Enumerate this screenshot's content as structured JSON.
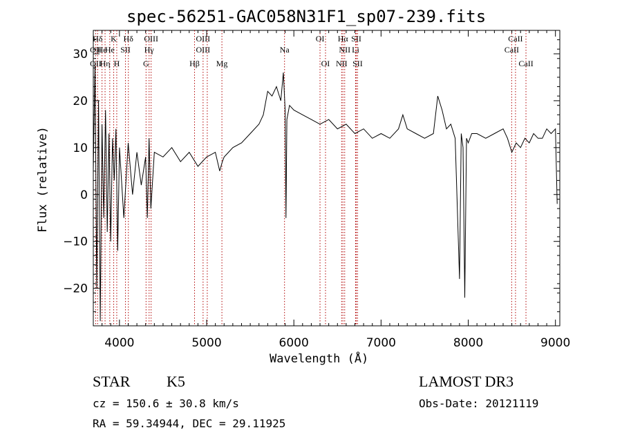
{
  "chart_data": {
    "type": "line",
    "title": "spec-56251-GAC058N31F1_sp07-239.fits",
    "xlabel": "Wavelength (Å)",
    "ylabel": "Flux (relative)",
    "xlim": [
      3700,
      9050
    ],
    "ylim": [
      -28,
      35
    ],
    "x_ticks": [
      4000,
      5000,
      6000,
      7000,
      8000,
      9000
    ],
    "x_tick_labels": [
      "4000",
      "5000",
      "6000",
      "7000",
      "8000",
      "9000"
    ],
    "y_ticks": [
      -20,
      -10,
      0,
      10,
      20,
      30
    ],
    "y_tick_labels": [
      "−20",
      "−10",
      "0",
      "10",
      "20",
      "30"
    ],
    "series": [
      {
        "name": "flux",
        "x": [
          3700,
          3720,
          3740,
          3760,
          3780,
          3800,
          3820,
          3840,
          3860,
          3880,
          3900,
          3920,
          3940,
          3960,
          3980,
          4000,
          4050,
          4100,
          4150,
          4200,
          4250,
          4300,
          4320,
          4340,
          4360,
          4400,
          4500,
          4600,
          4700,
          4800,
          4900,
          5000,
          5100,
          5150,
          5180,
          5200,
          5250,
          5300,
          5400,
          5500,
          5600,
          5650,
          5700,
          5750,
          5800,
          5850,
          5880,
          5900,
          5910,
          5920,
          5950,
          6000,
          6100,
          6200,
          6300,
          6400,
          6500,
          6600,
          6700,
          6800,
          6900,
          7000,
          7100,
          7200,
          7250,
          7300,
          7400,
          7500,
          7600,
          7650,
          7700,
          7750,
          7800,
          7850,
          7900,
          7920,
          7940,
          7960,
          7980,
          8000,
          8020,
          8040,
          8100,
          8200,
          8300,
          8400,
          8450,
          8500,
          8550,
          8600,
          8650,
          8700,
          8750,
          8800,
          8850,
          8900,
          8950,
          9000,
          9020
        ],
        "y": [
          5,
          28,
          -20,
          20,
          -27,
          15,
          -5,
          18,
          -8,
          13,
          -10,
          12,
          3,
          14,
          -12,
          10,
          -5,
          11,
          0,
          9,
          2,
          8,
          -5,
          12,
          -3,
          9,
          8,
          10,
          7,
          9,
          6,
          8,
          9,
          5,
          7,
          8,
          9,
          10,
          11,
          13,
          15,
          17,
          22,
          21,
          23,
          20,
          26,
          18,
          -5,
          16,
          19,
          18,
          17,
          16,
          15,
          16,
          14,
          15,
          13,
          14,
          12,
          13,
          12,
          14,
          17,
          14,
          13,
          12,
          13,
          21,
          18,
          14,
          15,
          12,
          -18,
          13,
          10,
          -22,
          12,
          11,
          12,
          13,
          13,
          12,
          13,
          14,
          12,
          9,
          11,
          10,
          12,
          11,
          13,
          12,
          12,
          14,
          13,
          14,
          -2
        ]
      }
    ],
    "line_markers": [
      {
        "name": "Hδ",
        "wavelength": 3750,
        "row": 0
      },
      {
        "name": "OII",
        "wavelength": 3727,
        "row": 1
      },
      {
        "name": "OII",
        "wavelength": 3727,
        "row": 2
      },
      {
        "name": "He",
        "wavelength": 3800,
        "row": 1
      },
      {
        "name": "Hη",
        "wavelength": 3835,
        "row": 2
      },
      {
        "name": "K",
        "wavelength": 3934,
        "row": 0
      },
      {
        "name": "He",
        "wavelength": 3889,
        "row": 1
      },
      {
        "name": "SII",
        "wavelength": 4069,
        "row": 1
      },
      {
        "name": "H",
        "wavelength": 3969,
        "row": 2
      },
      {
        "name": "Hδ",
        "wavelength": 4102,
        "row": 0
      },
      {
        "name": "OIII",
        "wavelength": 4363,
        "row": 0
      },
      {
        "name": "Hγ",
        "wavelength": 4340,
        "row": 1
      },
      {
        "name": "G",
        "wavelength": 4305,
        "row": 2
      },
      {
        "name": "OIII",
        "wavelength": 4959,
        "row": 0
      },
      {
        "name": "OIII",
        "wavelength": 4959,
        "row": 1
      },
      {
        "name": "Hβ",
        "wavelength": 4861,
        "row": 2
      },
      {
        "name": "Mg",
        "wavelength": 5175,
        "row": 2
      },
      {
        "name": "Na",
        "wavelength": 5893,
        "row": 1
      },
      {
        "name": "OI",
        "wavelength": 6300,
        "row": 0
      },
      {
        "name": "OI",
        "wavelength": 6363,
        "row": 2
      },
      {
        "name": "Hα",
        "wavelength": 6563,
        "row": 0
      },
      {
        "name": "SII",
        "wavelength": 6716,
        "row": 0
      },
      {
        "name": "NII",
        "wavelength": 6583,
        "row": 1
      },
      {
        "name": "Li",
        "wavelength": 6708,
        "row": 1
      },
      {
        "name": "NII",
        "wavelength": 6548,
        "row": 2
      },
      {
        "name": "SII",
        "wavelength": 6731,
        "row": 2
      },
      {
        "name": "CaII",
        "wavelength": 8542,
        "row": 0
      },
      {
        "name": "CaII",
        "wavelength": 8498,
        "row": 1
      },
      {
        "name": "CaII",
        "wavelength": 8662,
        "row": 2
      }
    ],
    "marker_lines": [
      3727,
      3750,
      3800,
      3835,
      3889,
      3934,
      3969,
      4069,
      4102,
      4305,
      4340,
      4363,
      4861,
      4959,
      5007,
      5175,
      5893,
      6300,
      6363,
      6548,
      6563,
      6583,
      6708,
      6716,
      6731,
      8498,
      8542,
      8662
    ]
  },
  "info": {
    "class_label": "STAR",
    "subclass_label": "K5",
    "survey_label": "LAMOST DR3",
    "redshift_text": "cz =  150.6 ± 30.8 km/s",
    "obsdate_text": "Obs-Date: 20121119",
    "radec_text": "RA =  59.34944, DEC =  29.11925"
  }
}
